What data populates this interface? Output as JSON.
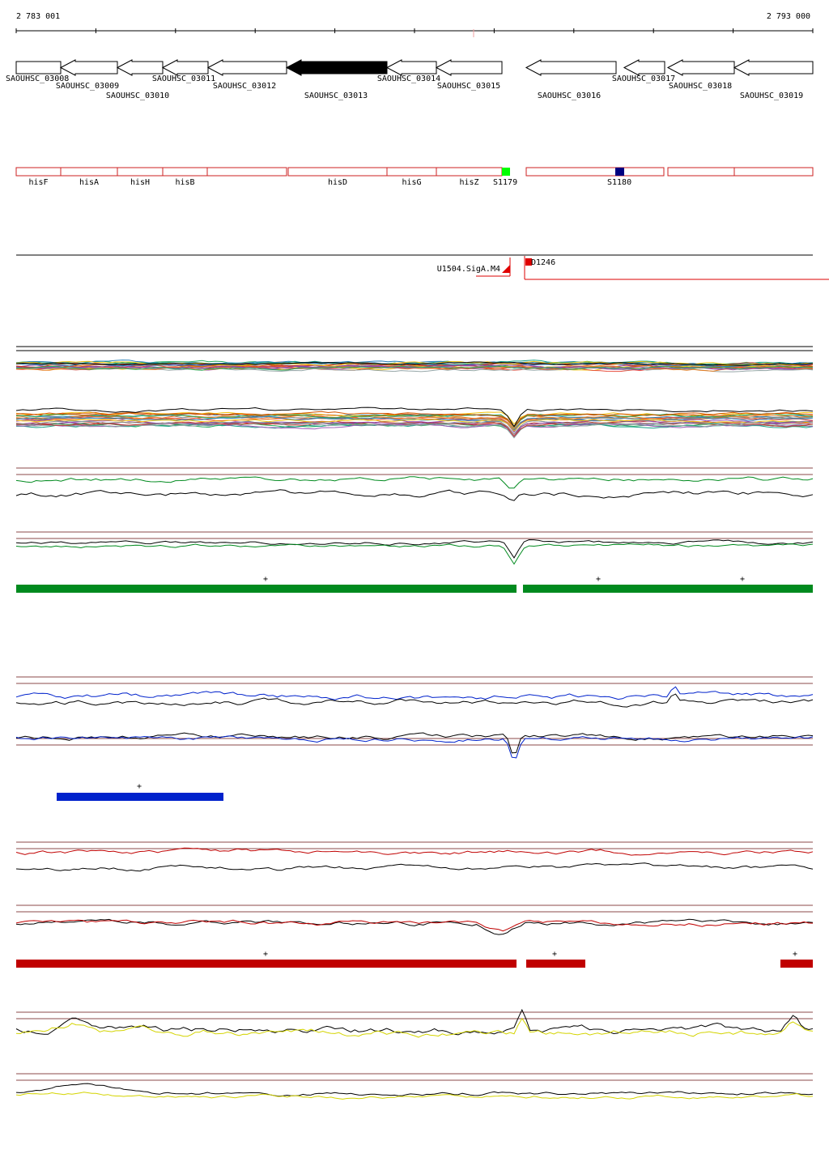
{
  "coords": {
    "start": "2 783 001",
    "end": "2 793 000"
  },
  "genes": [
    {
      "id": "SAOUHSC_03008",
      "strand": "+",
      "highlight": false
    },
    {
      "id": "SAOUHSC_03009",
      "strand": "-",
      "highlight": false
    },
    {
      "id": "SAOUHSC_03010",
      "strand": "-",
      "highlight": false
    },
    {
      "id": "SAOUHSC_03011",
      "strand": "-",
      "highlight": false
    },
    {
      "id": "SAOUHSC_03012",
      "strand": "-",
      "highlight": false
    },
    {
      "id": "SAOUHSC_03013",
      "strand": "-",
      "highlight": true
    },
    {
      "id": "SAOUHSC_03014",
      "strand": "-",
      "highlight": false
    },
    {
      "id": "SAOUHSC_03015",
      "strand": "-",
      "highlight": false
    },
    {
      "id": "SAOUHSC_03016",
      "strand": "-",
      "highlight": false
    },
    {
      "id": "SAOUHSC_03017",
      "strand": "-",
      "highlight": false
    },
    {
      "id": "SAOUHSC_03018",
      "strand": "-",
      "highlight": false
    },
    {
      "id": "SAOUHSC_03019",
      "strand": "-",
      "highlight": false
    }
  ],
  "annotations": [
    {
      "label": "hisF"
    },
    {
      "label": "hisA"
    },
    {
      "label": "hisH"
    },
    {
      "label": "hisB"
    },
    {
      "label": ""
    },
    {
      "label": "hisD"
    },
    {
      "label": "hisG"
    },
    {
      "label": "hisZ"
    },
    {
      "label": ""
    },
    {
      "label": ""
    },
    {
      "label": ""
    }
  ],
  "marks": [
    {
      "label": "S1179",
      "color": "#00ff00"
    },
    {
      "label": "S1180",
      "color": "#000080"
    }
  ],
  "features": [
    {
      "label": "U1504.SigA.M4"
    },
    {
      "label": "D1246"
    }
  ],
  "segment_markers": {
    "green": [
      "+",
      "+",
      "+"
    ],
    "blue": [
      "+"
    ],
    "red": [
      "+",
      "+",
      "+"
    ]
  },
  "colors": {
    "green": "#008a1e",
    "blue": "#0022cc",
    "red": "#c00000",
    "yellow": "#d4d400",
    "gene_box": "#cc2222"
  }
}
